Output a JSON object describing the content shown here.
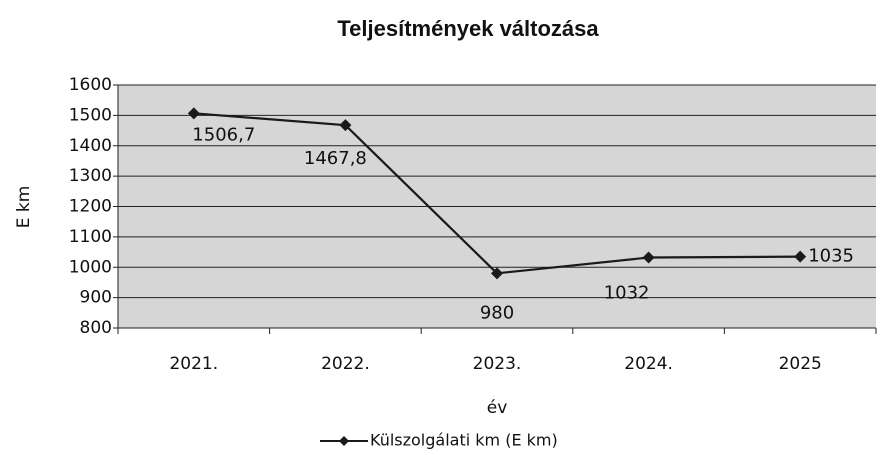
{
  "chart_data": {
    "type": "line",
    "title": "Teljesítmények változása",
    "y_label": "E km",
    "x_label": "év",
    "categories": [
      "2021.",
      "2022.",
      "2023.",
      "2024.",
      "2025"
    ],
    "series": [
      {
        "name": "Külszolgálati km (E km)",
        "color": "#1a1a1a",
        "values": [
          1506.7,
          1467.8,
          980,
          1032,
          1035
        ],
        "value_labels": [
          "1506,7",
          "1467,8",
          "980",
          "1032",
          "1035"
        ]
      }
    ],
    "ylim": [
      800,
      1600
    ],
    "yticks": [
      800,
      900,
      1000,
      1100,
      1200,
      1300,
      1400,
      1500,
      1600
    ],
    "grid": true,
    "legend": "bottom"
  }
}
